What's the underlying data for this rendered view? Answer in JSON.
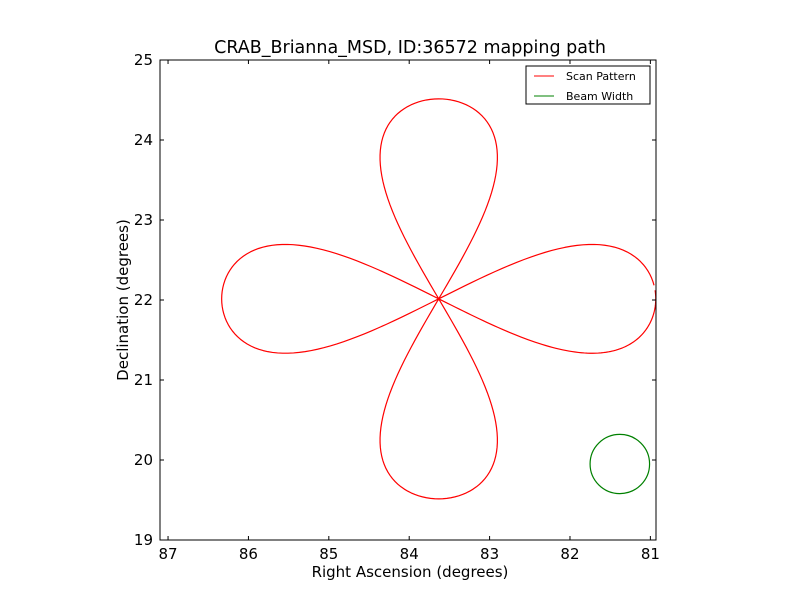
{
  "chart_data": {
    "type": "line",
    "title": "CRAB_Brianna_MSD, ID:36572 mapping path",
    "xlabel": "Right Ascension (degrees)",
    "ylabel": "Declination (degrees)",
    "xlim": [
      87.1,
      80.93
    ],
    "ylim": [
      19,
      25
    ],
    "x_ticks": [
      87,
      86,
      85,
      84,
      83,
      82,
      81
    ],
    "y_ticks": [
      19,
      20,
      21,
      22,
      23,
      24,
      25
    ],
    "x_tick_labels": [
      "87",
      "86",
      "85",
      "84",
      "83",
      "82",
      "81"
    ],
    "y_tick_labels": [
      "19",
      "20",
      "21",
      "22",
      "23",
      "24",
      "25"
    ],
    "grid": false,
    "legend_position": "top-right",
    "series": [
      {
        "name": "Scan Pattern",
        "color": "#ff0000",
        "pattern": "four-petal rose",
        "center": [
          83.633,
          22.0145
        ],
        "petal_extent_ra": 2.7,
        "petal_extent_dec": 2.5,
        "petal_half_width_ra": 0.73,
        "petal_half_width_dec": 0.68,
        "start": [
          86.28,
          21.8
        ],
        "end": [
          86.33,
          22.0
        ]
      },
      {
        "name": "Beam Width",
        "color": "#008000",
        "shape": "circle",
        "center": [
          81.38,
          19.95
        ],
        "radius_ra": 0.37,
        "radius_dec": 0.37
      }
    ]
  }
}
